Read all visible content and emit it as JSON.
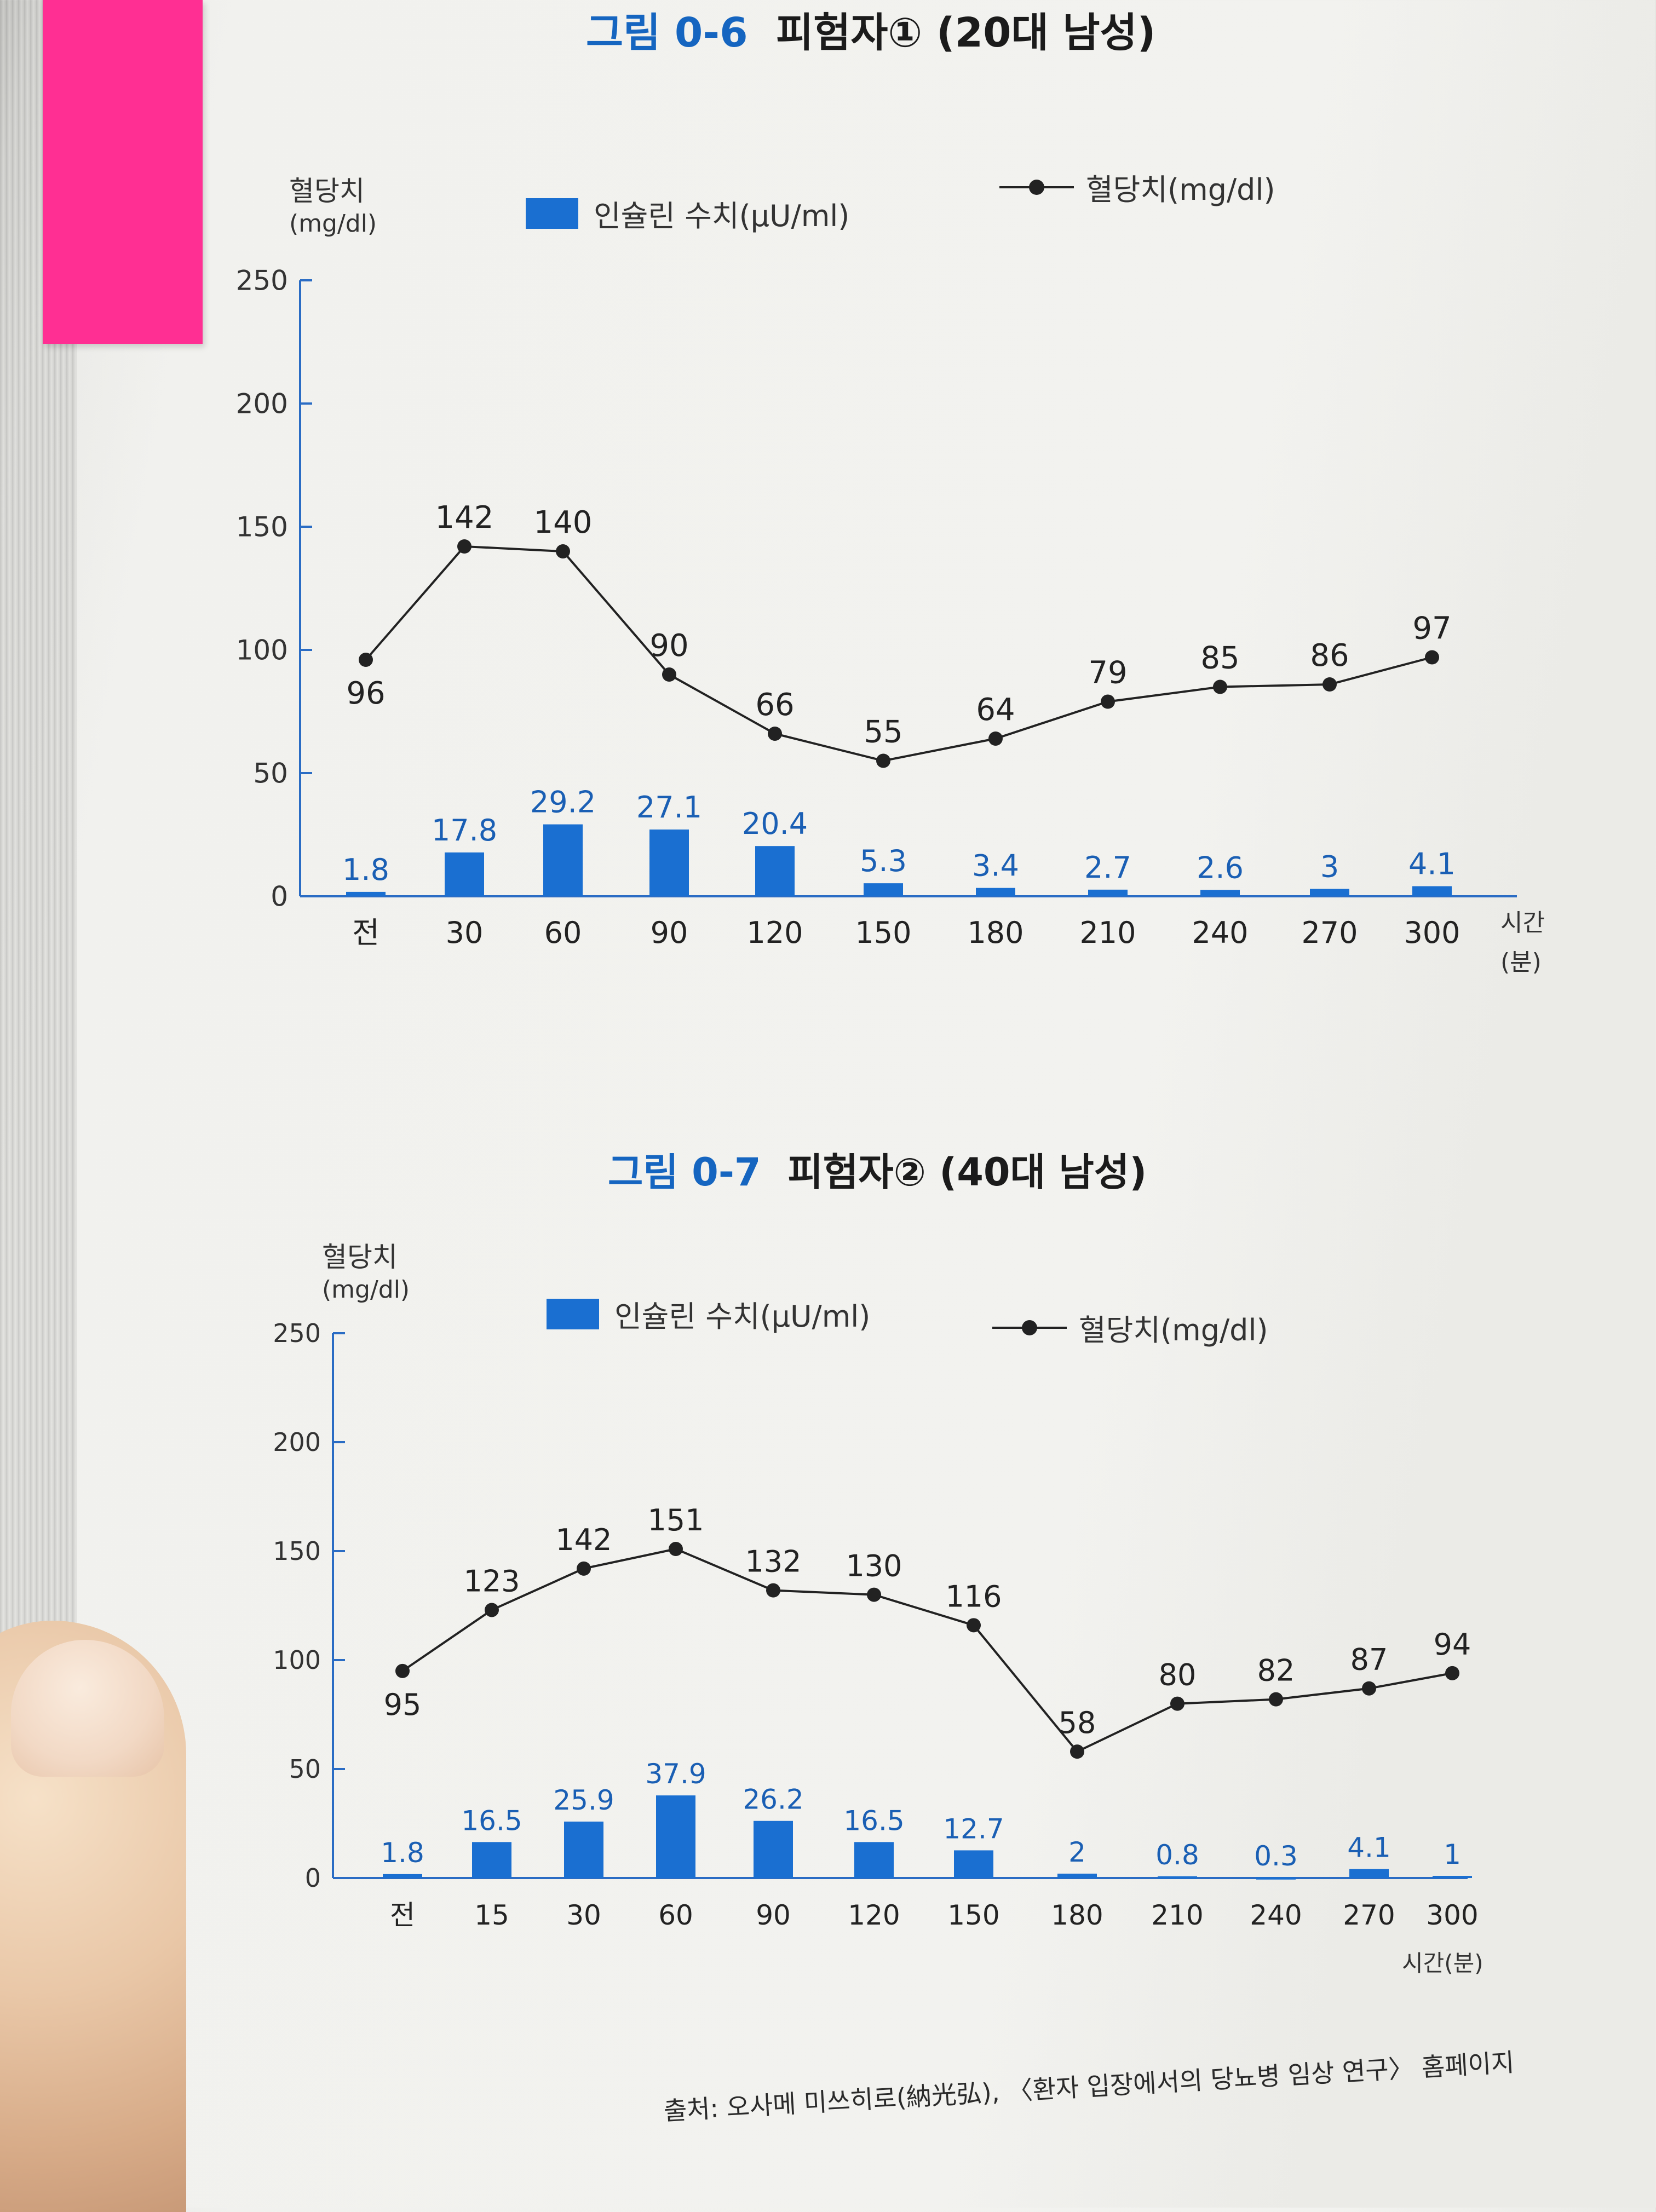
{
  "charts": [
    {
      "fig_label": "그림 0-6",
      "fig_name": "피험자① (20대 남성)",
      "ylabel": "혈당치",
      "yunit": "(mg/dl)",
      "legend_bar": "인슐린 수치(μU/ml)",
      "legend_line": "혈당치(mg/dl)",
      "xaxis_label": "시간",
      "xaxis_unit": "(분)"
    },
    {
      "fig_label": "그림 0-7",
      "fig_name": "피험자② (40대 남성)",
      "ylabel": "혈당치",
      "yunit": "(mg/dl)",
      "legend_bar": "인슐린 수치(μU/ml)",
      "legend_line": "혈당치(mg/dl)",
      "xaxis_label": "시간(분)",
      "xaxis_unit": ""
    }
  ],
  "chart_data": [
    {
      "type": "bar",
      "title": "그림 0-6 피험자① (20대 남성)",
      "ylabel": "혈당치 (mg/dl)",
      "xlabel": "시간 (분)",
      "ylim": [
        0,
        250
      ],
      "yticks": [
        0,
        50,
        100,
        150,
        200,
        250
      ],
      "categories": [
        "전",
        "30",
        "60",
        "90",
        "120",
        "150",
        "180",
        "210",
        "240",
        "270",
        "300"
      ],
      "series": [
        {
          "name": "인슐린 수치(μU/ml)",
          "type": "bar",
          "color": "#1a6fd1",
          "values": [
            1.8,
            17.8,
            29.2,
            27.1,
            20.4,
            5.3,
            3.4,
            2.7,
            2.6,
            3,
            4.1
          ]
        },
        {
          "name": "혈당치(mg/dl)",
          "type": "line",
          "color": "#222222",
          "values": [
            96,
            142,
            140,
            90,
            66,
            55,
            64,
            79,
            85,
            86,
            97
          ]
        }
      ],
      "legend": "top"
    },
    {
      "type": "bar",
      "title": "그림 0-7 피험자② (40대 남성)",
      "ylabel": "혈당치 (mg/dl)",
      "xlabel": "시간(분)",
      "ylim": [
        0,
        250
      ],
      "yticks": [
        0,
        50,
        100,
        150,
        200,
        250
      ],
      "categories": [
        "전",
        "15",
        "30",
        "60",
        "90",
        "120",
        "150",
        "180",
        "210",
        "240",
        "270",
        "300"
      ],
      "series": [
        {
          "name": "인슐린 수치(μU/ml)",
          "type": "bar",
          "color": "#1a6fd1",
          "values": [
            1.8,
            16.5,
            25.9,
            37.9,
            26.2,
            16.5,
            12.7,
            2,
            0.8,
            0.3,
            4.1,
            1
          ]
        },
        {
          "name": "혈당치(mg/dl)",
          "type": "line",
          "color": "#222222",
          "values": [
            95,
            123,
            142,
            151,
            132,
            130,
            116,
            58,
            80,
            82,
            87,
            94
          ]
        }
      ],
      "legend": "top"
    }
  ],
  "source": "출처: 오사메 미쓰히로(納光弘), 〈환자 입장에서의 당뇨병 임상 연구〉 홈페이지"
}
